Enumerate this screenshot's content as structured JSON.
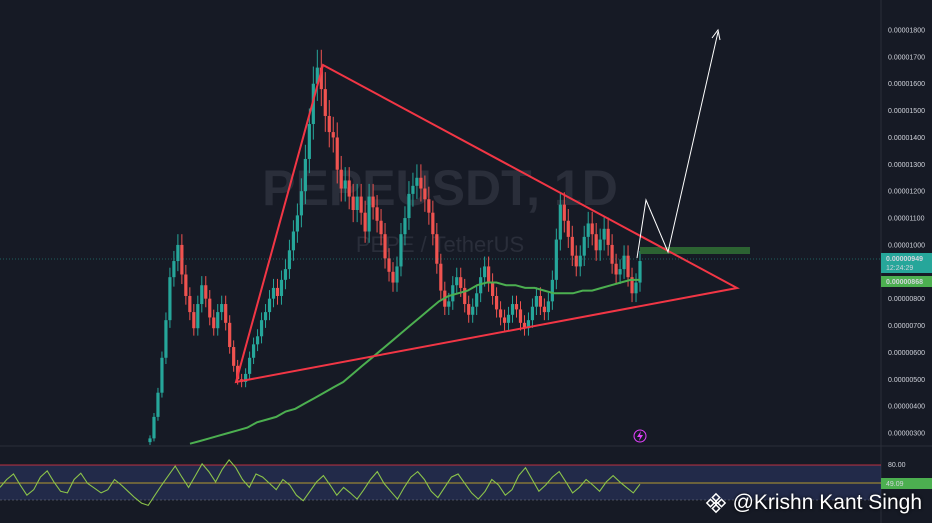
{
  "watermark": {
    "symbol": "PEPEUSDT, 1D",
    "name": "PEPE / TetherUS"
  },
  "credit": {
    "handle": "@Krishn Kant Singh",
    "logo_icon": "binance-logo-icon"
  },
  "price_scale": {
    "ticks": [
      "0.00001800",
      "0.00001700",
      "0.00001600",
      "0.00001500",
      "0.00001400",
      "0.00001300",
      "0.00001200",
      "0.00001100",
      "0.00001000",
      "0.00000800",
      "0.00000700",
      "0.00000600",
      "0.00000500",
      "0.00000400",
      "0.00000300"
    ],
    "last_price": "0.00000949",
    "countdown": "12:24:29",
    "ma_price": "0.00000868",
    "last_price_color": "#26a69a",
    "ma_color": "#4caf50"
  },
  "rsi": {
    "upper_level": "80.00",
    "value": "49.09",
    "value_color": "#4caf50"
  },
  "colors": {
    "background": "#161a25",
    "up_candle": "#26a69a",
    "down_candle": "#ef5350",
    "ma_line": "#4caf50",
    "triangle": "#f23645",
    "projection": "#ffffff",
    "rsi_line": "#8bc34a",
    "rsi_band": "#3a4a8c"
  },
  "chart_data": {
    "type": "candlestick",
    "symbol": "PEPEUSDT",
    "timeframe": "1D",
    "y_scale": "linear",
    "ylim": [
      2.6e-06,
      1.91e-05
    ],
    "grid": false,
    "series": [
      {
        "name": "price",
        "close": [
          2.8e-06,
          3.6e-06,
          4.5e-06,
          5.8e-06,
          7.2e-06,
          8.8e-06,
          9.4e-06,
          1e-05,
          8.9e-06,
          8.1e-06,
          7.5e-06,
          6.9e-06,
          7.8e-06,
          8.5e-06,
          8e-06,
          7.3e-06,
          6.9e-06,
          7.5e-06,
          7.8e-06,
          7.1e-06,
          6.2e-06,
          5.5e-06,
          5e-06,
          4.9e-06,
          5.2e-06,
          5.8e-06,
          6.3e-06,
          6.6e-06,
          7.2e-06,
          7.5e-06,
          8e-06,
          8.4e-06,
          8.1e-06,
          8.7e-06,
          9.1e-06,
          9.8e-06,
          1.05e-05,
          1.11e-05,
          1.2e-05,
          1.32e-05,
          1.45e-05,
          1.6e-05,
          1.66e-05,
          1.58e-05,
          1.48e-05,
          1.42e-05,
          1.4e-05,
          1.28e-05,
          1.21e-05,
          1.24e-05,
          1.18e-05,
          1.13e-05,
          1.18e-05,
          1.12e-05,
          1.05e-05,
          1.18e-05,
          1.14e-05,
          1.09e-05,
          1.04e-05,
          9.5e-06,
          9e-06,
          8.6e-06,
          9.2e-06,
          1.04e-05,
          1.1e-05,
          1.19e-05,
          1.22e-05,
          1.25e-05,
          1.21e-05,
          1.17e-05,
          1.12e-05,
          1.04e-05,
          9.3e-06,
          8.3e-06,
          7.7e-06,
          7.9e-06,
          8.5e-06,
          8.8e-06,
          8.4e-06,
          7.8e-06,
          7.4e-06,
          7.7e-06,
          8.2e-06,
          8.8e-06,
          9.2e-06,
          8.6e-06,
          8.1e-06,
          7.6e-06,
          7.3e-06,
          7.1e-06,
          7.4e-06,
          7.8e-06,
          7.6e-06,
          7.1e-06,
          6.9e-06,
          7.2e-06,
          7.7e-06,
          8.1e-06,
          7.7e-06,
          7.5e-06,
          7.9e-06,
          8.7e-06,
          1.02e-05,
          1.15e-05,
          1.09e-05,
          1.03e-05,
          9.6e-06,
          9.2e-06,
          9.6e-06,
          1.03e-05,
          1.08e-05,
          1.04e-05,
          9.8e-06,
          1.02e-05,
          1.06e-05,
          1e-05,
          9.3e-06,
          8.9e-06,
          9.1e-06,
          9.6e-06,
          8.8e-06,
          8.2e-06,
          8.6e-06,
          9.4e-06
        ]
      },
      {
        "name": "moving average",
        "values": [
          2.6e-06,
          2.7e-06,
          2.8e-06,
          2.9e-06,
          3e-06,
          3.1e-06,
          3.2e-06,
          3.4e-06,
          3.5e-06,
          3.6e-06,
          3.8e-06,
          3.9e-06,
          4.1e-06,
          4.3e-06,
          4.5e-06,
          4.7e-06,
          4.9e-06,
          5.2e-06,
          5.5e-06,
          5.8e-06,
          6.1e-06,
          6.4e-06,
          6.7e-06,
          7e-06,
          7.3e-06,
          7.6e-06,
          7.9e-06,
          8.1e-06,
          8.2e-06,
          8.3e-06,
          8.5e-06,
          8.6e-06,
          8.6e-06,
          8.5e-06,
          8.5e-06,
          8.4e-06,
          8.4e-06,
          8.3e-06,
          8.2e-06,
          8.2e-06,
          8.2e-06,
          8.3e-06,
          8.3e-06,
          8.4e-06,
          8.5e-06,
          8.6e-06,
          8.7e-06,
          8.7e-06
        ]
      }
    ],
    "annotations": [
      {
        "type": "triangle",
        "color": "#f23645",
        "points_price": [
          [
            1.67e-05,
            "apex-left-top"
          ],
          [
            4.8e-06,
            "left-bottom"
          ],
          [
            8.3e-06,
            "right-apex"
          ]
        ]
      },
      {
        "type": "projection-arrow",
        "color": "#ffffff"
      },
      {
        "type": "resistance-zone",
        "color": "#4caf50"
      }
    ],
    "rsi": {
      "upper_level": 80,
      "current": 49.09,
      "values": [
        45,
        55,
        62,
        48,
        35,
        42,
        58,
        66,
        52,
        40,
        38,
        55,
        63,
        50,
        44,
        38,
        42,
        55,
        48,
        40,
        32,
        25,
        22,
        35,
        48,
        60,
        72,
        58,
        45,
        60,
        75,
        65,
        52,
        68,
        80,
        70,
        55,
        45,
        62,
        58,
        50,
        42,
        55,
        48,
        35,
        28,
        40,
        52,
        60,
        48,
        35,
        45,
        38,
        30,
        42,
        55,
        65,
        50,
        40,
        30,
        45,
        58,
        65,
        55,
        40,
        32,
        45,
        58,
        62,
        50,
        38,
        30,
        40,
        55,
        48,
        35,
        42,
        60,
        70,
        55,
        40,
        48,
        58,
        65,
        52,
        38,
        45,
        55,
        48,
        40,
        52,
        60,
        52,
        45,
        38,
        49
      ]
    }
  }
}
